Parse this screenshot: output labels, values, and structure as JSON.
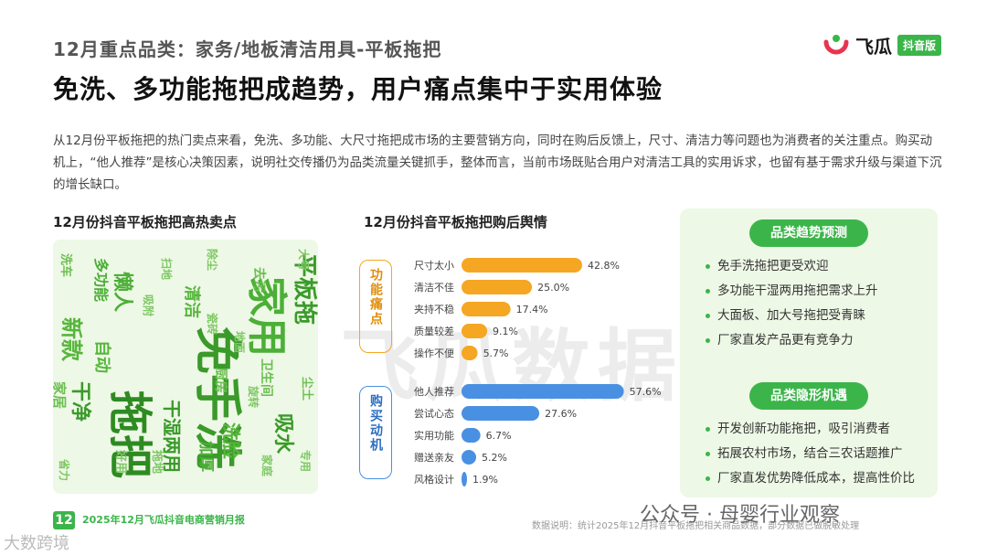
{
  "header": {
    "supertitle": "12月重点品类：家务/地板清洁用具-平板拖把",
    "title": "免洗、多功能拖把成趋势，用户痛点集中于实用体验"
  },
  "logo": {
    "name": "飞瓜",
    "badge": "抖音版"
  },
  "intro": "从12月份平板拖把的热门卖点来看，免洗、多功能、大尺寸拖把成市场的主要营销方向，同时在购后反馈上，尺寸、清洁力等问题也为消费者的关注重点。购买动机上，“他人推荐”是核心决策因素，说明社交传播仍为品类流量关键抓手，整体而言，当前市场既贴合用户对清洁工具的实用诉求，也留有基于需求升级与渠道下沉的增长缺口。",
  "wordcloud": {
    "title": "12月份抖音平板拖把高热卖点",
    "words": [
      "免手洗",
      "家用",
      "拖把",
      "平板拖",
      "新款",
      "懒人",
      "干湿两用",
      "自动",
      "吸水",
      "去污",
      "多功能",
      "洗脸",
      "洗车",
      "家居",
      "干净",
      "加厚",
      "厨房",
      "卫生间",
      "清洁",
      "尘土",
      "扫地",
      "地面",
      "好用",
      "家庭",
      "瓷砖",
      "拖地",
      "吸附",
      "专用",
      "旋转",
      "除尘",
      "大号",
      "省力"
    ]
  },
  "chart_data": {
    "type": "bar",
    "title": "12月份抖音平板拖把购后舆情",
    "groups": [
      {
        "name": "功能痛点",
        "categories": [
          "尺寸太小",
          "清洁不佳",
          "夹持不稳",
          "质量较差",
          "操作不便"
        ],
        "values": [
          42.8,
          25.0,
          17.4,
          9.1,
          5.7
        ],
        "labels": [
          "42.8%",
          "25.0%",
          "17.4%",
          "9.1%",
          "5.7%"
        ],
        "color": "#f5a623"
      },
      {
        "name": "购买动机",
        "categories": [
          "他人推荐",
          "尝试心态",
          "实用功能",
          "赠送亲友",
          "风格设计"
        ],
        "values": [
          57.6,
          27.6,
          6.7,
          5.2,
          1.9
        ],
        "labels": [
          "57.6%",
          "27.6%",
          "6.7%",
          "5.2%",
          "1.9%"
        ],
        "color": "#4a90e2"
      }
    ],
    "xlim": [
      0,
      60
    ],
    "grid": false,
    "legend": "none"
  },
  "panel": {
    "trend_title": "品类趋势预测",
    "trend_items": [
      "免手洗拖把更受欢迎",
      "多功能干湿两用拖把需求上升",
      "大面板、加大号拖把受青睐",
      "厂家直发产品更有竞争力"
    ],
    "opp_title": "品类隐形机遇",
    "opp_items": [
      "开发创新功能拖把，吸引消费者",
      "拓展农村市场，结合三农话题推广",
      "厂家直发优势降低成本，提高性价比"
    ]
  },
  "watermark": "飞瓜数据",
  "footer": {
    "page": "12",
    "report": "2025年12月飞瓜抖音电商营销月报",
    "note": "数据说明：统计2025年12月抖音平板拖把相关商品数据，部分数据已做脱敏处理",
    "wechat": "公众号 · 母婴行业观察",
    "corner": "大数跨境"
  },
  "colors": {
    "brand_green": "#3bb54a",
    "pain": "#f5a623",
    "motive": "#4a90e2"
  }
}
